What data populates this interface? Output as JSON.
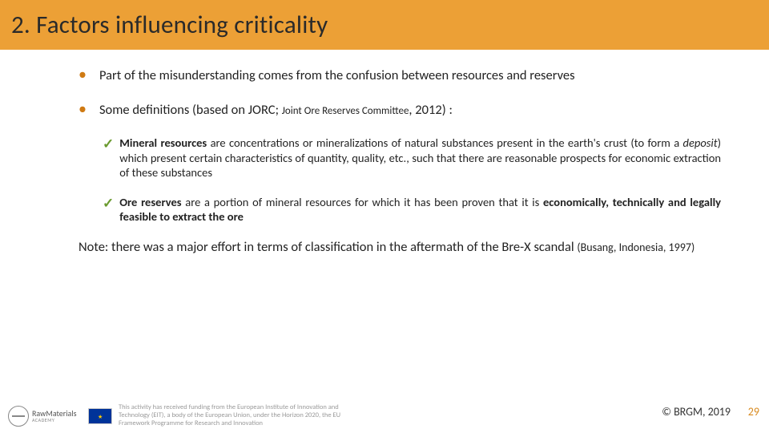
{
  "colors": {
    "band_bg": "#eca036",
    "title_text": "#2a2a2a",
    "bullet_color": "#cf7a13",
    "check_color": "#6a9a2f",
    "pagenum_color": "#d88a1f",
    "body_text": "#222222"
  },
  "title": "2. Factors influencing criticality",
  "bullets": [
    {
      "text": "Part of the misunderstanding comes from the confusion between resources and reserves"
    },
    {
      "text_prefix": "Some definitions (based on JORC; ",
      "text_src": "Joint Ore Reserves Committee",
      "text_suffix": ", 2012) :"
    }
  ],
  "checks": [
    {
      "lead_bold": "Mineral resources",
      "rest": " are concentrations or mineralizations of natural substances present in the earth's crust (to form a ",
      "emph": "deposit",
      "rest2": ") which present certain characteristics of quantity, quality, etc., such that there are reasonable prospects for economic extraction of these substances"
    },
    {
      "lead_bold": "Ore reserves",
      "rest": " are a portion of mineral resources for which it has been proven that it is ",
      "bold_tail": "economically, technically and legally feasible to extract the ore"
    }
  ],
  "note": {
    "line1": "Note: there was a major effort in terms of classification in the aftermath of the Bre-X scandal ",
    "src": "(Busang, Indonesia, 1997)"
  },
  "footer": {
    "eit_label": "RawMaterials",
    "eit_sub": "ACADEMY",
    "funding": "This activity has received funding from the European Institute of Innovation and Technology (EIT), a body of the European Union, under the Horizon 2020, the EU Framework Programme for Research and Innovation",
    "copyright": "© BRGM, 2019",
    "page": "29"
  }
}
